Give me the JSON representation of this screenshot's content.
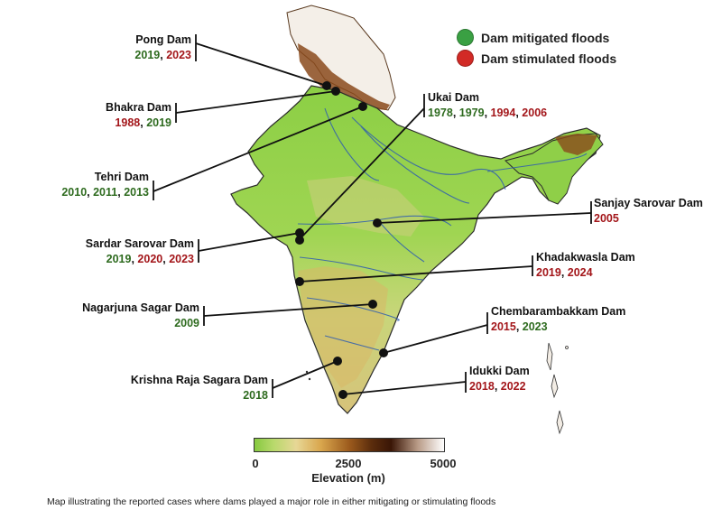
{
  "legend": {
    "mitigated": {
      "label": "Dam mitigated floods",
      "color": "#3aa043"
    },
    "stimulated": {
      "label": "Dam stimulated floods",
      "color": "#d22a26"
    }
  },
  "dams": [
    {
      "name": "Pong Dam",
      "years": [
        {
          "y": "2019",
          "t": "m"
        },
        {
          "y": "2023",
          "t": "s"
        }
      ]
    },
    {
      "name": "Bhakra Dam",
      "years": [
        {
          "y": "1988",
          "t": "s"
        },
        {
          "y": "2019",
          "t": "m"
        }
      ]
    },
    {
      "name": "Tehri Dam",
      "years": [
        {
          "y": "2010",
          "t": "m"
        },
        {
          "y": "2011",
          "t": "m"
        },
        {
          "y": "2013",
          "t": "m"
        }
      ]
    },
    {
      "name": "Sardar Sarovar Dam",
      "years": [
        {
          "y": "2019",
          "t": "m"
        },
        {
          "y": "2020",
          "t": "s"
        },
        {
          "y": "2023",
          "t": "s"
        }
      ]
    },
    {
      "name": "Nagarjuna Sagar Dam",
      "years": [
        {
          "y": "2009",
          "t": "m"
        }
      ]
    },
    {
      "name": "Krishna Raja Sagara Dam",
      "years": [
        {
          "y": "2018",
          "t": "m"
        }
      ]
    },
    {
      "name": "Ukai Dam",
      "years": [
        {
          "y": "1978",
          "t": "m"
        },
        {
          "y": "1979",
          "t": "m"
        },
        {
          "y": "1994",
          "t": "s"
        },
        {
          "y": "2006",
          "t": "s"
        }
      ]
    },
    {
      "name": "Sanjay Sarovar Dam",
      "years": [
        {
          "y": "2005",
          "t": "s"
        }
      ]
    },
    {
      "name": "Khadakwasla Dam",
      "years": [
        {
          "y": "2019",
          "t": "s"
        },
        {
          "y": "2024",
          "t": "s"
        }
      ]
    },
    {
      "name": "Chembarambakkam Dam",
      "years": [
        {
          "y": "2015",
          "t": "s"
        },
        {
          "y": "2023",
          "t": "m"
        }
      ]
    },
    {
      "name": "Idukki Dam",
      "years": [
        {
          "y": "2018",
          "t": "s"
        },
        {
          "y": "2022",
          "t": "s"
        }
      ]
    }
  ],
  "colorbar": {
    "ticks": [
      "0",
      "2500",
      "5000"
    ],
    "title": "Elevation (m)"
  },
  "caption": "Map illustrating the reported cases where dams played a major role in either mitigating or stimulating floods"
}
